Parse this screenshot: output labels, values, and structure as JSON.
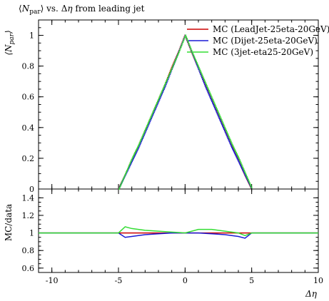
{
  "chart_data": [
    {
      "type": "scatter",
      "panel": "main",
      "title": "⟨N_par⟩ vs. Δη from leading jet",
      "ylabel": "⟨N_par⟩",
      "xlabel": "Δη",
      "xlim": [
        -11,
        10
      ],
      "ylim": [
        0,
        1.1
      ],
      "yticks": [
        0,
        0.2,
        0.4,
        0.6,
        0.8,
        1
      ],
      "ytick_labels": [
        "0",
        "0.2",
        "0.4",
        "0.6",
        "0.8",
        "1"
      ],
      "grid": false,
      "legend_position": "top-right",
      "series": [
        {
          "name": "MC (LeadJet-25eta-20GeV)",
          "color": "#cc0000",
          "x": [
            -5,
            -4.5,
            -4,
            -3.5,
            -3,
            -2.5,
            -2,
            -1.5,
            -1,
            -0.5,
            0,
            0.5,
            1,
            1.5,
            2,
            2.5,
            3,
            3.5,
            4,
            4.5,
            5
          ],
          "y": [
            0,
            0.09,
            0.19,
            0.28,
            0.38,
            0.48,
            0.58,
            0.68,
            0.79,
            0.89,
            1.0,
            0.89,
            0.79,
            0.68,
            0.58,
            0.48,
            0.38,
            0.28,
            0.19,
            0.09,
            0
          ]
        },
        {
          "name": "MC (Dijet-25eta-20GeV)",
          "color": "#1a1ad6",
          "x": [
            -5,
            -4.5,
            -4,
            -3.5,
            -3,
            -2.5,
            -2,
            -1.5,
            -1,
            -0.5,
            0,
            0.5,
            1,
            1.5,
            2,
            2.5,
            3,
            3.5,
            4,
            4.5,
            5
          ],
          "y": [
            0,
            0.09,
            0.18,
            0.27,
            0.37,
            0.47,
            0.57,
            0.67,
            0.78,
            0.89,
            1.0,
            0.89,
            0.78,
            0.67,
            0.57,
            0.47,
            0.37,
            0.27,
            0.18,
            0.09,
            0
          ]
        },
        {
          "name": "MC (3jet-eta25-20GeV)",
          "color": "#33dd33",
          "x": [
            -5,
            -4.5,
            -4,
            -3.5,
            -3,
            -2.5,
            -2,
            -1.5,
            -1,
            -0.5,
            0,
            0.5,
            1,
            1.5,
            2,
            2.5,
            3,
            3.5,
            4,
            4.5,
            5
          ],
          "y": [
            0,
            0.1,
            0.2,
            0.29,
            0.39,
            0.49,
            0.59,
            0.69,
            0.79,
            0.89,
            1.0,
            0.89,
            0.79,
            0.69,
            0.59,
            0.49,
            0.39,
            0.29,
            0.2,
            0.1,
            0
          ]
        }
      ]
    },
    {
      "type": "line",
      "panel": "ratio",
      "ylabel": "MC/data",
      "xlabel": "Δη",
      "xlim": [
        -11,
        10
      ],
      "ylim": [
        0.55,
        1.5
      ],
      "yticks": [
        0.6,
        0.8,
        1,
        1.2,
        1.4
      ],
      "ytick_labels": [
        "0.6",
        "0.8",
        "1",
        "1.2",
        "1.4"
      ],
      "xticks": [
        -10,
        -5,
        0,
        5,
        10
      ],
      "xtick_labels": [
        "-10",
        "-5",
        "0",
        "5",
        "10"
      ],
      "grid": false,
      "series": [
        {
          "name": "MC (LeadJet-25eta-20GeV)",
          "color": "#cc0000",
          "x": [
            -11,
            -5,
            -4,
            -3,
            -2,
            -1,
            0,
            1,
            2,
            3,
            4,
            5,
            10
          ],
          "y": [
            1,
            1,
            1,
            1,
            1,
            1,
            1,
            1,
            1,
            1,
            1,
            1,
            1
          ]
        },
        {
          "name": "MC (Dijet-25eta-20GeV)",
          "color": "#1a1ad6",
          "x": [
            -11,
            -5,
            -4.5,
            -4,
            -3,
            -2,
            -1,
            0,
            1,
            2,
            3,
            4,
            4.5,
            5,
            10
          ],
          "y": [
            1,
            1,
            0.95,
            0.96,
            0.98,
            0.99,
            1.0,
            1.0,
            1.0,
            0.99,
            0.98,
            0.96,
            0.94,
            1,
            1
          ]
        },
        {
          "name": "MC (3jet-eta25-20GeV)",
          "color": "#33dd33",
          "x": [
            -11,
            -5,
            -4.5,
            -4,
            -3,
            -2,
            -1,
            0,
            1,
            2,
            3,
            4,
            4.5,
            5,
            10
          ],
          "y": [
            1,
            1,
            1.07,
            1.05,
            1.03,
            1.02,
            1.01,
            1.0,
            1.04,
            1.04,
            1.02,
            1.0,
            0.97,
            1,
            1
          ]
        }
      ]
    }
  ]
}
